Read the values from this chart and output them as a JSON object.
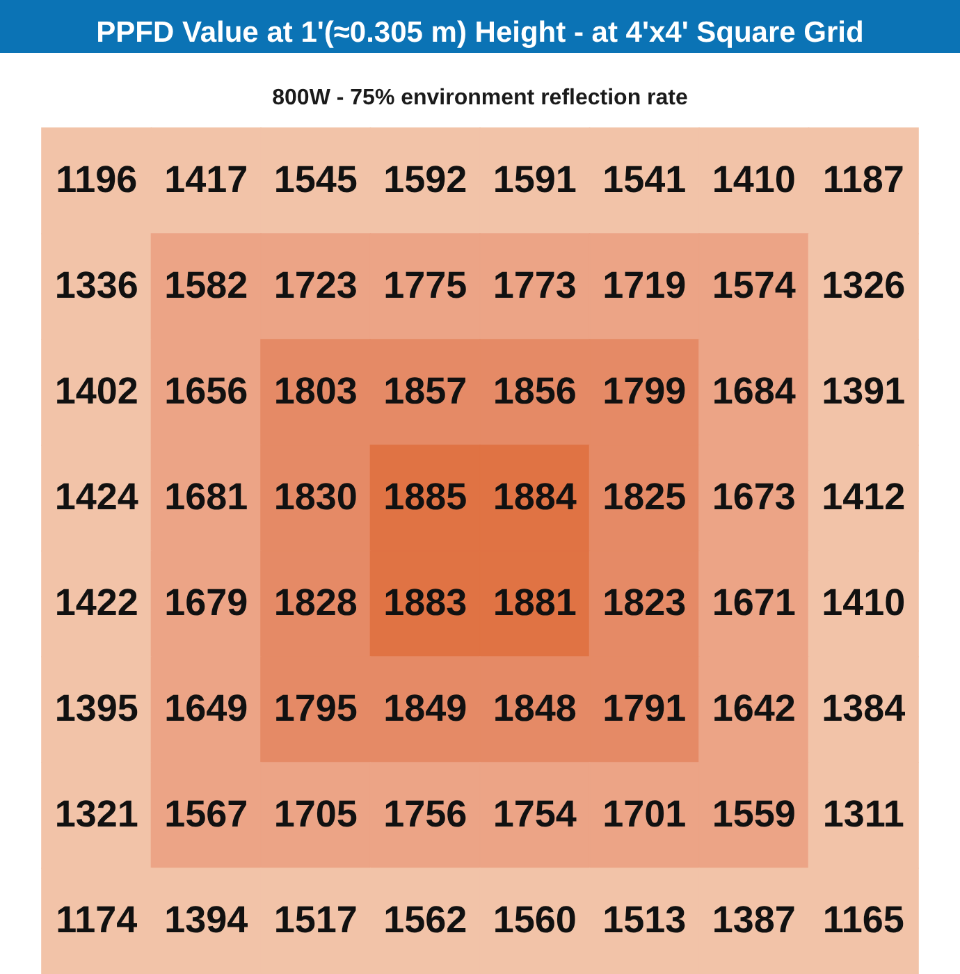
{
  "chart_data": {
    "type": "heatmap",
    "title": "PPFD Value at 1'(≈0.305 m) Height - at 4'x4' Square Grid",
    "subtitle": "800W - 75% environment reflection rate",
    "categories": [
      null,
      null,
      null,
      null,
      null,
      null,
      null,
      null
    ],
    "y_categories": [
      null,
      null,
      null,
      null,
      null,
      null,
      null,
      null
    ],
    "cells": [
      [
        1196,
        1417,
        1545,
        1592,
        1591,
        1541,
        1410,
        1187
      ],
      [
        1336,
        1582,
        1723,
        1775,
        1773,
        1719,
        1574,
        1326
      ],
      [
        1402,
        1656,
        1803,
        1857,
        1856,
        1799,
        1684,
        1391
      ],
      [
        1424,
        1681,
        1830,
        1885,
        1884,
        1825,
        1673,
        1412
      ],
      [
        1422,
        1679,
        1828,
        1883,
        1881,
        1823,
        1671,
        1410
      ],
      [
        1395,
        1649,
        1795,
        1849,
        1848,
        1791,
        1642,
        1384
      ],
      [
        1321,
        1567,
        1705,
        1756,
        1754,
        1701,
        1559,
        1311
      ],
      [
        1174,
        1394,
        1517,
        1562,
        1560,
        1513,
        1387,
        1165
      ]
    ],
    "colors": [
      [
        "#f2c3a8",
        "#f2c3a8",
        "#f2c3a8",
        "#f2c3a8",
        "#f2c3a8",
        "#f2c3a8",
        "#f2c3a8",
        "#f2c3a8"
      ],
      [
        "#f2c3a8",
        "#eca486",
        "#eca486",
        "#eca486",
        "#eca486",
        "#eca486",
        "#eca486",
        "#f2c3a8"
      ],
      [
        "#f2c3a8",
        "#eca486",
        "#e58a66",
        "#e58a66",
        "#e58a66",
        "#e58a66",
        "#eca486",
        "#f2c3a8"
      ],
      [
        "#f2c3a8",
        "#eca486",
        "#e58a66",
        "#e07344",
        "#e07344",
        "#e58a66",
        "#eca486",
        "#f2c3a8"
      ],
      [
        "#f2c3a8",
        "#eca486",
        "#e58a66",
        "#e07344",
        "#e07344",
        "#e58a66",
        "#eca486",
        "#f2c3a8"
      ],
      [
        "#f2c3a8",
        "#eca486",
        "#e58a66",
        "#e58a66",
        "#e58a66",
        "#e58a66",
        "#eca486",
        "#f2c3a8"
      ],
      [
        "#f2c3a8",
        "#eca486",
        "#eca486",
        "#eca486",
        "#eca486",
        "#eca486",
        "#eca486",
        "#f2c3a8"
      ],
      [
        "#f2c3a8",
        "#f2c3a8",
        "#f2c3a8",
        "#f2c3a8",
        "#f2c3a8",
        "#f2c3a8",
        "#f2c3a8",
        "#f2c3a8"
      ]
    ],
    "data_labels": true
  }
}
